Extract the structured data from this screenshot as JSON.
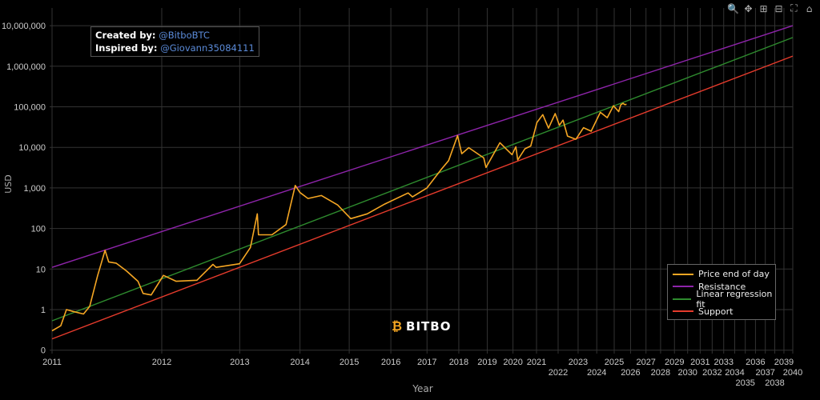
{
  "chart_data": {
    "type": "line",
    "xlabel": "Year",
    "ylabel": "USD",
    "x_scale": "log (days since genesis block)",
    "y_scale": "log",
    "grid": true,
    "legend_placement": "bottom-right",
    "x_tick_labels": [
      "2011",
      "2012",
      "2013",
      "2014",
      "2015",
      "2016",
      "2017",
      "2018",
      "2019",
      "2020",
      "2021",
      "2022",
      "2023",
      "2024",
      "2025",
      "2026",
      "2027",
      "2028",
      "2029",
      "2030",
      "2031",
      "2032",
      "2033",
      "2034",
      "2035",
      "2036",
      "2037",
      "2038",
      "2039",
      "2040"
    ],
    "y_ticks": [
      0.1,
      1,
      10,
      100,
      1000,
      10000,
      100000,
      1000000,
      10000000
    ],
    "y_tick_labels": [
      "0",
      "1",
      "10",
      "100",
      "1,000",
      "10,000",
      "100,000",
      "1,000,000",
      "10,000,000"
    ],
    "series": [
      {
        "name": "Price end of day",
        "color": "#f5a623",
        "points": [
          [
            "2011-01-01",
            0.3
          ],
          [
            "2011-01-25",
            0.4
          ],
          [
            "2011-02-10",
            1.0
          ],
          [
            "2011-03-01",
            0.9
          ],
          [
            "2011-04-01",
            0.78
          ],
          [
            "2011-04-20",
            1.2
          ],
          [
            "2011-05-15",
            7
          ],
          [
            "2011-06-08",
            29
          ],
          [
            "2011-06-20",
            15
          ],
          [
            "2011-07-15",
            14
          ],
          [
            "2011-08-20",
            9
          ],
          [
            "2011-10-01",
            5
          ],
          [
            "2011-10-20",
            2.5
          ],
          [
            "2011-11-20",
            2.3
          ],
          [
            "2012-01-08",
            7
          ],
          [
            "2012-03-01",
            5
          ],
          [
            "2012-06-01",
            5.3
          ],
          [
            "2012-08-16",
            13
          ],
          [
            "2012-09-01",
            11
          ],
          [
            "2012-12-31",
            13.5
          ],
          [
            "2013-03-01",
            34
          ],
          [
            "2013-04-09",
            230
          ],
          [
            "2013-04-16",
            70
          ],
          [
            "2013-07-05",
            70
          ],
          [
            "2013-10-01",
            125
          ],
          [
            "2013-11-30",
            1150
          ],
          [
            "2014-01-01",
            770
          ],
          [
            "2014-02-25",
            550
          ],
          [
            "2014-06-01",
            650
          ],
          [
            "2014-10-01",
            380
          ],
          [
            "2015-01-14",
            175
          ],
          [
            "2015-06-01",
            230
          ],
          [
            "2015-11-04",
            400
          ],
          [
            "2016-06-18",
            750
          ],
          [
            "2016-08-01",
            600
          ],
          [
            "2017-01-01",
            1000
          ],
          [
            "2017-06-10",
            2900
          ],
          [
            "2017-09-01",
            4700
          ],
          [
            "2017-12-17",
            19500
          ],
          [
            "2018-02-06",
            7000
          ],
          [
            "2018-05-05",
            9800
          ],
          [
            "2018-11-15",
            5500
          ],
          [
            "2018-12-15",
            3200
          ],
          [
            "2019-06-26",
            13000
          ],
          [
            "2019-12-18",
            6600
          ],
          [
            "2020-02-13",
            10300
          ],
          [
            "2020-03-12",
            4900
          ],
          [
            "2020-07-01",
            9200
          ],
          [
            "2020-10-01",
            10800
          ],
          [
            "2021-01-08",
            41000
          ],
          [
            "2021-04-14",
            64000
          ],
          [
            "2021-07-20",
            29800
          ],
          [
            "2021-11-10",
            68000
          ],
          [
            "2022-01-24",
            35000
          ],
          [
            "2022-03-29",
            47000
          ],
          [
            "2022-06-18",
            19000
          ],
          [
            "2022-11-21",
            15800
          ],
          [
            "2023-04-14",
            30500
          ],
          [
            "2023-09-11",
            25000
          ],
          [
            "2024-03-14",
            73000
          ],
          [
            "2024-08-05",
            54000
          ],
          [
            "2024-12-17",
            106000
          ],
          [
            "2025-04-08",
            76000
          ],
          [
            "2025-05-22",
            111000
          ],
          [
            "2025-07-14",
            122000
          ],
          [
            "2025-08-20",
            113000
          ],
          [
            "2025-10-01",
            115000
          ]
        ]
      },
      {
        "name": "Resistance",
        "color": "#8e24aa",
        "points": [
          [
            "2011-01-01",
            11
          ],
          [
            "2040-01-01",
            10000000
          ]
        ]
      },
      {
        "name": "Linear regression fit",
        "color": "#2e8b2e",
        "points": [
          [
            "2011-01-01",
            0.53
          ],
          [
            "2040-01-01",
            5100000
          ]
        ]
      },
      {
        "name": "Support",
        "color": "#e53b2c",
        "points": [
          [
            "2011-01-01",
            0.19
          ],
          [
            "2040-01-01",
            1780000
          ]
        ]
      }
    ]
  },
  "annotation": {
    "created_label": "Created by:",
    "created_value": "@BitboBTC",
    "inspired_label": "Inspired by:",
    "inspired_value": "@Giovann35084111"
  },
  "logo": {
    "text": "BITBO"
  },
  "toolbar": [
    "zoom-icon",
    "pan-icon",
    "zoom-in-icon",
    "zoom-out-icon",
    "autoscale-icon",
    "reset-axes-icon"
  ]
}
